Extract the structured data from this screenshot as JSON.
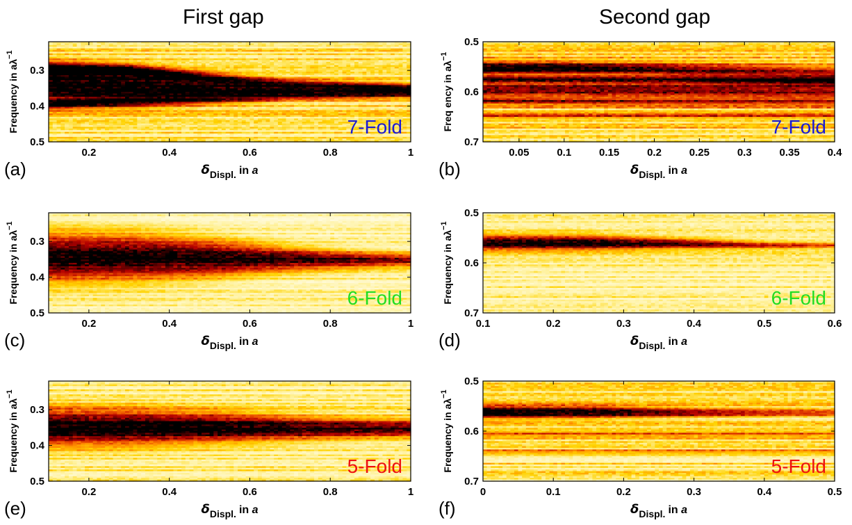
{
  "columns": [
    "First gap",
    "Second gap"
  ],
  "colors": {
    "fold_7": "#1a1ad6",
    "fold_6": "#22dd22",
    "fold_5": "#ee1111",
    "colormap": [
      "#000000",
      "#5a0000",
      "#b30000",
      "#e03a00",
      "#ff8c00",
      "#ffd200",
      "#fff2a0",
      "#ffffff"
    ]
  },
  "chart_data": [
    {
      "type": "heatmap",
      "panel_label": "(a)",
      "fold_label": "7-Fold",
      "fold_color": "#1a1ad6",
      "xlabel_main": "δ",
      "xlabel_sub": "Displ.",
      "xlabel_tail": "in",
      "xlabel_unit": "a",
      "ylabel": "Frequency in aλ",
      "ylabel_sup": "−1",
      "xlim": [
        0.1,
        1.0
      ],
      "ylim": [
        0.5,
        0.22
      ],
      "y_inverted": true,
      "xticks": [
        0.2,
        0.4,
        0.6,
        0.8,
        1
      ],
      "xtick_labels": [
        "0.2",
        "0.4",
        "0.6",
        "0.8",
        "1"
      ],
      "yticks": [
        0.3,
        0.4,
        0.5
      ],
      "ytick_labels": [
        "0.3",
        "0.4",
        "0.5"
      ],
      "bands": [
        {
          "x": [
            0.1,
            0.3,
            0.5,
            0.7,
            0.85,
            1.0
          ],
          "center": [
            0.34,
            0.345,
            0.35,
            0.355,
            0.355,
            0.355
          ],
          "width": [
            0.05,
            0.045,
            0.03,
            0.02,
            0.018,
            0.016
          ],
          "amp": [
            1.0,
            1.0,
            0.95,
            0.85,
            0.75,
            0.7
          ]
        },
        {
          "x": [
            0.1,
            0.3,
            0.6,
            1.0
          ],
          "center": [
            0.295,
            0.3,
            0.33,
            0.35
          ],
          "width": [
            0.015,
            0.014,
            0.012,
            0.01
          ],
          "amp": [
            0.85,
            0.8,
            0.5,
            0.4
          ]
        },
        {
          "x": [
            0.1,
            0.4,
            0.7,
            1.0
          ],
          "center": [
            0.395,
            0.385,
            0.375,
            0.37
          ],
          "width": [
            0.012,
            0.012,
            0.01,
            0.01
          ],
          "amp": [
            0.75,
            0.6,
            0.4,
            0.3
          ]
        }
      ],
      "background": 0.3,
      "seed": 11
    },
    {
      "type": "heatmap",
      "panel_label": "(b)",
      "fold_label": "7-Fold",
      "fold_color": "#1a1ad6",
      "xlabel_main": "δ",
      "xlabel_sub": "Displ.",
      "xlabel_tail": "in",
      "xlabel_unit": "a",
      "ylabel": "Freq   ency in aλ",
      "ylabel_sup": "−1",
      "xlim": [
        0.01,
        0.4
      ],
      "ylim": [
        0.7,
        0.5
      ],
      "y_inverted": true,
      "xticks": [
        0.05,
        0.1,
        0.15,
        0.2,
        0.25,
        0.3,
        0.35,
        0.4
      ],
      "xtick_labels": [
        "0.05",
        "0.1",
        "0.15",
        "0.2",
        "0.25",
        "0.3",
        "0.35",
        "0.4"
      ],
      "yticks": [
        0.5,
        0.6,
        0.7
      ],
      "ytick_labels": [
        "0.5",
        "0.6",
        "0.7"
      ],
      "bands": [
        {
          "x": [
            0.01,
            0.1,
            0.2,
            0.3,
            0.4
          ],
          "center": [
            0.553,
            0.553,
            0.555,
            0.56,
            0.565
          ],
          "width": [
            0.012,
            0.012,
            0.012,
            0.014,
            0.016
          ],
          "amp": [
            1.0,
            0.95,
            0.8,
            0.65,
            0.55
          ]
        },
        {
          "x": [
            0.01,
            0.2,
            0.4
          ],
          "center": [
            0.575,
            0.575,
            0.578
          ],
          "width": [
            0.006,
            0.006,
            0.006
          ],
          "amp": [
            0.7,
            0.6,
            0.5
          ]
        },
        {
          "x": [
            0.01,
            0.2,
            0.4
          ],
          "center": [
            0.595,
            0.595,
            0.595
          ],
          "width": [
            0.01,
            0.012,
            0.014
          ],
          "amp": [
            0.75,
            0.7,
            0.6
          ]
        },
        {
          "x": [
            0.01,
            0.2,
            0.4
          ],
          "center": [
            0.618,
            0.62,
            0.62
          ],
          "width": [
            0.008,
            0.009,
            0.01
          ],
          "amp": [
            0.6,
            0.5,
            0.45
          ]
        },
        {
          "x": [
            0.01,
            0.4
          ],
          "center": [
            0.648,
            0.648
          ],
          "width": [
            0.006,
            0.006
          ],
          "amp": [
            0.35,
            0.3
          ]
        }
      ],
      "background": 0.35,
      "seed": 23
    },
    {
      "type": "heatmap",
      "panel_label": "(c)",
      "fold_label": "6-Fold",
      "fold_color": "#22dd22",
      "xlabel_main": "δ",
      "xlabel_sub": "Displ.",
      "xlabel_tail": "in",
      "xlabel_unit": "a",
      "ylabel": "Frequency in aλ",
      "ylabel_sup": "−1",
      "xlim": [
        0.1,
        1.0
      ],
      "ylim": [
        0.5,
        0.22
      ],
      "y_inverted": true,
      "xticks": [
        0.2,
        0.4,
        0.6,
        0.8,
        1
      ],
      "xtick_labels": [
        "0.2",
        "0.4",
        "0.6",
        "0.8",
        "1"
      ],
      "yticks": [
        0.3,
        0.4,
        0.5
      ],
      "ytick_labels": [
        "0.3",
        "0.4",
        "0.5"
      ],
      "bands": [
        {
          "x": [
            0.1,
            0.3,
            0.5,
            0.7,
            0.85,
            1.0
          ],
          "center": [
            0.345,
            0.345,
            0.347,
            0.35,
            0.352,
            0.352
          ],
          "width": [
            0.062,
            0.058,
            0.045,
            0.03,
            0.022,
            0.018
          ],
          "amp": [
            1.0,
            1.0,
            1.0,
            0.9,
            0.8,
            0.7
          ]
        }
      ],
      "background": 0.18,
      "seed": 37
    },
    {
      "type": "heatmap",
      "panel_label": "(d)",
      "fold_label": "6-Fold",
      "fold_color": "#22dd22",
      "xlabel_main": "δ",
      "xlabel_sub": "Displ.",
      "xlabel_tail": "in",
      "xlabel_unit": "a",
      "ylabel": "Frequency in aλ",
      "ylabel_sup": "−1",
      "xlim": [
        0.1,
        0.6
      ],
      "ylim": [
        0.7,
        0.5
      ],
      "y_inverted": true,
      "xticks": [
        0.1,
        0.2,
        0.3,
        0.4,
        0.5,
        0.6
      ],
      "xtick_labels": [
        "0.1",
        "0.2",
        "0.3",
        "0.4",
        "0.5",
        "0.6"
      ],
      "yticks": [
        0.5,
        0.6,
        0.7
      ],
      "ytick_labels": [
        "0.5",
        "0.6",
        "0.7"
      ],
      "bands": [
        {
          "x": [
            0.1,
            0.25,
            0.4,
            0.5,
            0.6
          ],
          "center": [
            0.56,
            0.56,
            0.562,
            0.565,
            0.565
          ],
          "width": [
            0.014,
            0.013,
            0.009,
            0.007,
            0.006
          ],
          "amp": [
            1.0,
            1.0,
            0.8,
            0.55,
            0.4
          ]
        }
      ],
      "background": 0.2,
      "seed": 51
    },
    {
      "type": "heatmap",
      "panel_label": "(e)",
      "fold_label": "5-Fold",
      "fold_color": "#ee1111",
      "xlabel_main": "δ",
      "xlabel_sub": "Displ.",
      "xlabel_tail": "in",
      "xlabel_unit": "a",
      "ylabel": "Frequency in aλ",
      "ylabel_sup": "−1",
      "xlim": [
        0.1,
        1.0
      ],
      "ylim": [
        0.5,
        0.22
      ],
      "y_inverted": true,
      "xticks": [
        0.2,
        0.4,
        0.6,
        0.8,
        1
      ],
      "xtick_labels": [
        "0.2",
        "0.4",
        "0.6",
        "0.8",
        "1"
      ],
      "yticks": [
        0.3,
        0.4,
        0.5
      ],
      "ytick_labels": [
        "0.3",
        "0.4",
        "0.5"
      ],
      "bands": [
        {
          "x": [
            0.1,
            0.3,
            0.5,
            0.7,
            0.85,
            1.0
          ],
          "center": [
            0.35,
            0.35,
            0.35,
            0.352,
            0.352,
            0.352
          ],
          "width": [
            0.048,
            0.045,
            0.038,
            0.03,
            0.025,
            0.022
          ],
          "amp": [
            1.0,
            1.0,
            1.0,
            0.9,
            0.85,
            0.8
          ]
        }
      ],
      "background": 0.25,
      "seed": 67
    },
    {
      "type": "heatmap",
      "panel_label": "(f)",
      "fold_label": "5-Fold",
      "fold_color": "#ee1111",
      "xlabel_main": "δ",
      "xlabel_sub": "Displ.",
      "xlabel_tail": "in",
      "xlabel_unit": "a",
      "ylabel": "Frequency in aλ",
      "ylabel_sup": "−1",
      "xlim": [
        0.0,
        0.5
      ],
      "ylim": [
        0.7,
        0.5
      ],
      "y_inverted": true,
      "xticks": [
        0,
        0.1,
        0.2,
        0.3,
        0.4,
        0.5
      ],
      "xtick_labels": [
        "0",
        "0.1",
        "0.2",
        "0.3",
        "0.4",
        "0.5"
      ],
      "yticks": [
        0.5,
        0.6,
        0.7
      ],
      "ytick_labels": [
        "0.5",
        "0.6",
        "0.7"
      ],
      "bands": [
        {
          "x": [
            0.0,
            0.15,
            0.3,
            0.4,
            0.5
          ],
          "center": [
            0.562,
            0.562,
            0.563,
            0.563,
            0.563
          ],
          "width": [
            0.012,
            0.011,
            0.008,
            0.007,
            0.006
          ],
          "amp": [
            1.0,
            0.95,
            0.7,
            0.55,
            0.45
          ]
        },
        {
          "x": [
            0.0,
            0.5
          ],
          "center": [
            0.605,
            0.605
          ],
          "width": [
            0.006,
            0.006
          ],
          "amp": [
            0.3,
            0.25
          ]
        },
        {
          "x": [
            0.0,
            0.5
          ],
          "center": [
            0.642,
            0.642
          ],
          "width": [
            0.006,
            0.006
          ],
          "amp": [
            0.3,
            0.25
          ]
        }
      ],
      "background": 0.3,
      "seed": 83
    }
  ]
}
